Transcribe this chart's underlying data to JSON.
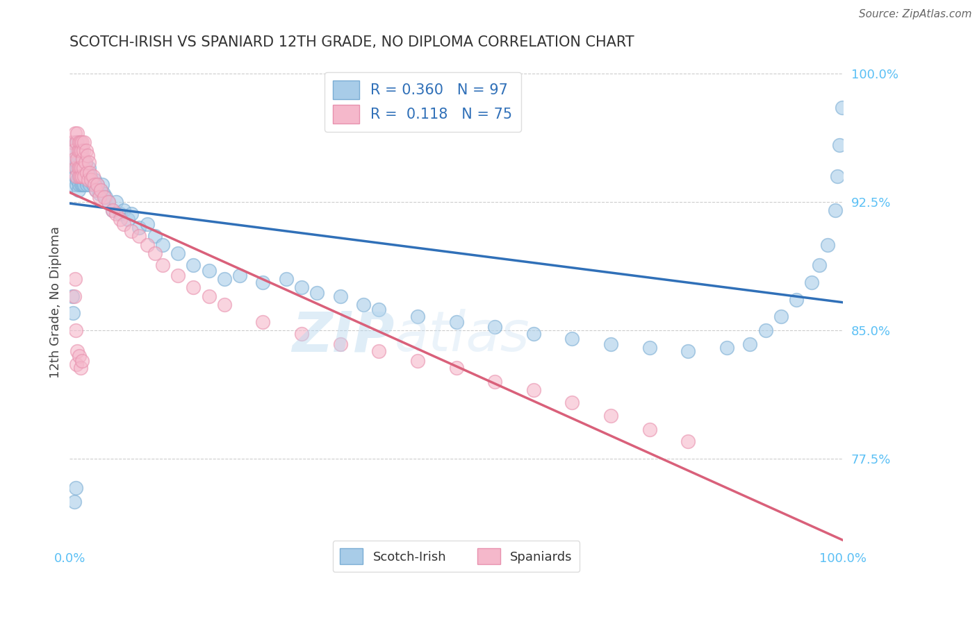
{
  "title": "SCOTCH-IRISH VS SPANIARD 12TH GRADE, NO DIPLOMA CORRELATION CHART",
  "source_text": "Source: ZipAtlas.com",
  "ylabel": "12th Grade, No Diploma",
  "xlim": [
    0.0,
    1.0
  ],
  "ylim": [
    0.725,
    1.008
  ],
  "yticks": [
    0.775,
    0.85,
    0.925,
    1.0
  ],
  "ytick_labels": [
    "77.5%",
    "85.0%",
    "92.5%",
    "100.0%"
  ],
  "xticks": [
    0.0,
    1.0
  ],
  "xtick_labels": [
    "0.0%",
    "100.0%"
  ],
  "blue_R": 0.36,
  "blue_N": 97,
  "pink_R": 0.118,
  "pink_N": 75,
  "blue_color": "#a8cce8",
  "pink_color": "#f5b8cb",
  "blue_edge_color": "#7aadd4",
  "pink_edge_color": "#e891ae",
  "blue_line_color": "#3070b8",
  "pink_line_color": "#d9607a",
  "legend_label_blue": "Scotch-Irish",
  "legend_label_pink": "Spaniards",
  "background_color": "#ffffff",
  "grid_color": "#cccccc",
  "title_color": "#333333",
  "right_label_color": "#5bc0f5",
  "watermark_text": "ZIPatlas",
  "watermark_color": "#cce0f0",
  "blue_scatter_x": [
    0.003,
    0.005,
    0.006,
    0.007,
    0.008,
    0.008,
    0.009,
    0.009,
    0.01,
    0.01,
    0.01,
    0.011,
    0.011,
    0.012,
    0.012,
    0.013,
    0.013,
    0.013,
    0.014,
    0.014,
    0.015,
    0.015,
    0.015,
    0.016,
    0.016,
    0.017,
    0.017,
    0.018,
    0.018,
    0.019,
    0.019,
    0.02,
    0.02,
    0.021,
    0.022,
    0.023,
    0.024,
    0.025,
    0.026,
    0.027,
    0.028,
    0.03,
    0.032,
    0.034,
    0.036,
    0.038,
    0.04,
    0.042,
    0.044,
    0.046,
    0.05,
    0.055,
    0.06,
    0.065,
    0.07,
    0.075,
    0.08,
    0.09,
    0.1,
    0.11,
    0.12,
    0.14,
    0.16,
    0.18,
    0.2,
    0.22,
    0.25,
    0.28,
    0.3,
    0.32,
    0.35,
    0.38,
    0.4,
    0.45,
    0.5,
    0.55,
    0.6,
    0.65,
    0.7,
    0.75,
    0.8,
    0.85,
    0.88,
    0.9,
    0.92,
    0.94,
    0.96,
    0.97,
    0.98,
    0.99,
    0.993,
    0.996,
    0.999,
    0.003,
    0.004,
    0.006,
    0.008
  ],
  "blue_scatter_y": [
    0.935,
    0.955,
    0.945,
    0.94,
    0.95,
    0.96,
    0.945,
    0.935,
    0.938,
    0.948,
    0.96,
    0.942,
    0.932,
    0.935,
    0.95,
    0.94,
    0.945,
    0.955,
    0.938,
    0.948,
    0.935,
    0.945,
    0.955,
    0.94,
    0.95,
    0.935,
    0.945,
    0.94,
    0.95,
    0.935,
    0.945,
    0.938,
    0.948,
    0.94,
    0.935,
    0.942,
    0.938,
    0.945,
    0.935,
    0.94,
    0.938,
    0.935,
    0.938,
    0.932,
    0.935,
    0.93,
    0.932,
    0.935,
    0.93,
    0.928,
    0.925,
    0.92,
    0.925,
    0.918,
    0.92,
    0.915,
    0.918,
    0.91,
    0.912,
    0.905,
    0.9,
    0.895,
    0.888,
    0.885,
    0.88,
    0.882,
    0.878,
    0.88,
    0.875,
    0.872,
    0.87,
    0.865,
    0.862,
    0.858,
    0.855,
    0.852,
    0.848,
    0.845,
    0.842,
    0.84,
    0.838,
    0.84,
    0.842,
    0.85,
    0.858,
    0.868,
    0.878,
    0.888,
    0.9,
    0.92,
    0.94,
    0.958,
    0.98,
    0.87,
    0.86,
    0.75,
    0.758
  ],
  "pink_scatter_x": [
    0.003,
    0.005,
    0.006,
    0.007,
    0.008,
    0.009,
    0.009,
    0.01,
    0.01,
    0.011,
    0.011,
    0.012,
    0.012,
    0.013,
    0.013,
    0.014,
    0.014,
    0.015,
    0.015,
    0.016,
    0.016,
    0.017,
    0.018,
    0.018,
    0.019,
    0.019,
    0.02,
    0.021,
    0.022,
    0.023,
    0.024,
    0.025,
    0.026,
    0.028,
    0.03,
    0.032,
    0.034,
    0.036,
    0.038,
    0.04,
    0.045,
    0.05,
    0.055,
    0.06,
    0.065,
    0.07,
    0.08,
    0.09,
    0.1,
    0.11,
    0.12,
    0.14,
    0.16,
    0.18,
    0.2,
    0.25,
    0.3,
    0.35,
    0.4,
    0.45,
    0.5,
    0.55,
    0.6,
    0.65,
    0.7,
    0.75,
    0.8,
    0.006,
    0.007,
    0.008,
    0.009,
    0.01,
    0.012,
    0.014,
    0.016
  ],
  "pink_scatter_y": [
    0.96,
    0.955,
    0.95,
    0.965,
    0.945,
    0.96,
    0.94,
    0.95,
    0.965,
    0.945,
    0.955,
    0.94,
    0.96,
    0.945,
    0.955,
    0.94,
    0.96,
    0.945,
    0.955,
    0.94,
    0.96,
    0.95,
    0.945,
    0.955,
    0.94,
    0.96,
    0.948,
    0.955,
    0.942,
    0.952,
    0.938,
    0.948,
    0.942,
    0.938,
    0.94,
    0.935,
    0.932,
    0.935,
    0.928,
    0.932,
    0.928,
    0.925,
    0.92,
    0.918,
    0.915,
    0.912,
    0.908,
    0.905,
    0.9,
    0.895,
    0.888,
    0.882,
    0.875,
    0.87,
    0.865,
    0.855,
    0.848,
    0.842,
    0.838,
    0.832,
    0.828,
    0.82,
    0.815,
    0.808,
    0.8,
    0.792,
    0.785,
    0.87,
    0.88,
    0.85,
    0.83,
    0.838,
    0.835,
    0.828,
    0.832
  ]
}
